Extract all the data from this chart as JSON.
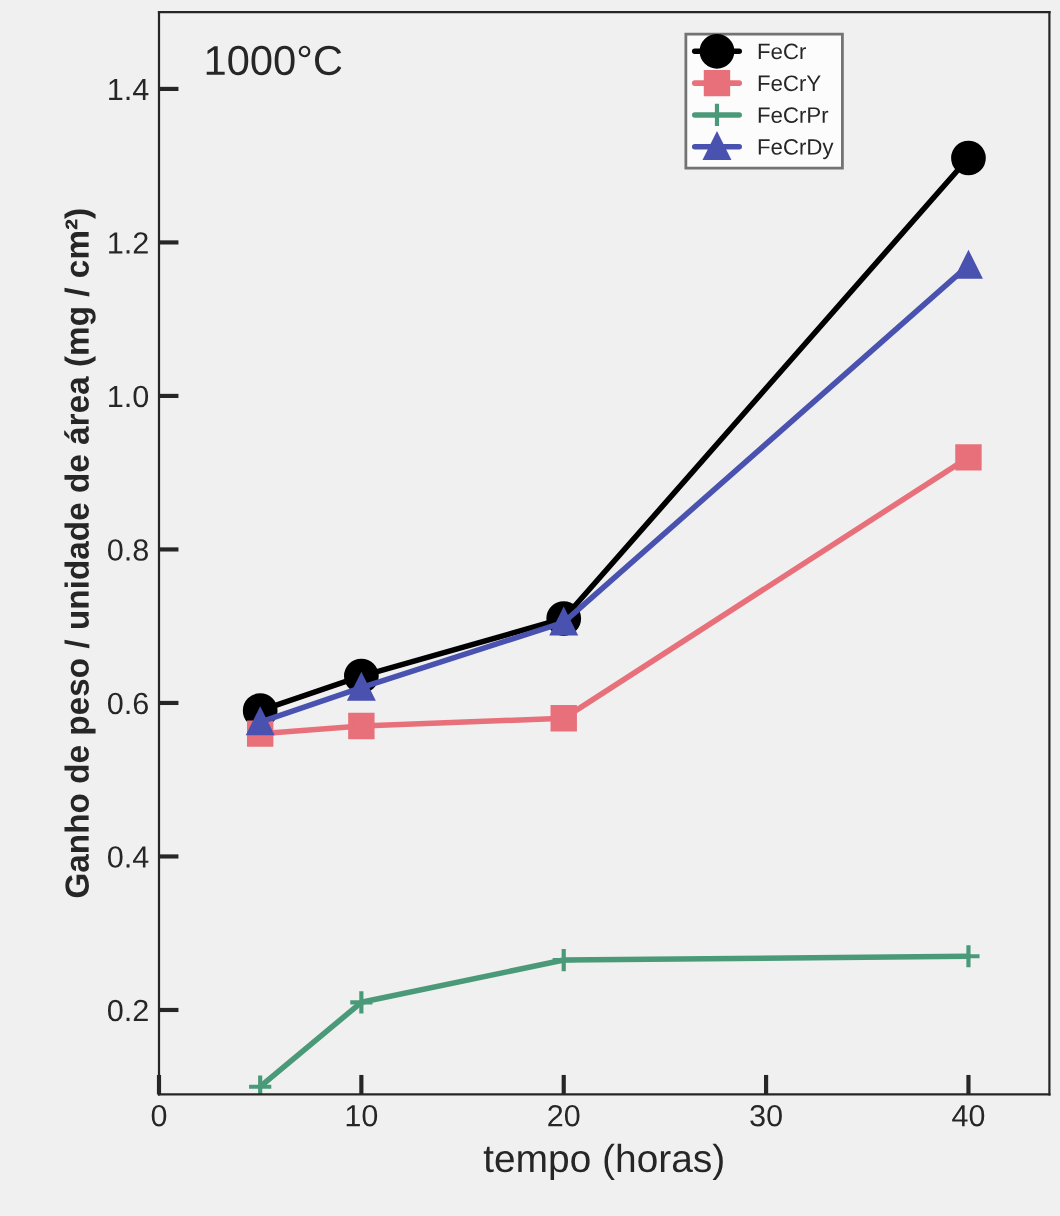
{
  "chart_data": {
    "type": "line",
    "xlabel": "tempo (horas)",
    "ylabel": "Ganho de peso / unidade de área (mg / cm²)",
    "annotations": [
      "1000°C"
    ],
    "x": [
      5,
      10,
      20,
      40
    ],
    "series": [
      {
        "name": "FeCr",
        "color": "#000000",
        "marker": "circle",
        "values": [
          0.59,
          0.635,
          0.71,
          1.31
        ]
      },
      {
        "name": "FeCrY",
        "color": "#e8707a",
        "marker": "square",
        "values": [
          0.56,
          0.57,
          0.58,
          0.92
        ]
      },
      {
        "name": "FeCrPr",
        "color": "#4a9a7a",
        "marker": "cross",
        "values": [
          0.1,
          0.21,
          0.265,
          0.27
        ]
      },
      {
        "name": "FeCrDy",
        "color": "#4a52b0",
        "marker": "triangle",
        "values": [
          0.575,
          0.62,
          0.705,
          1.17
        ]
      }
    ],
    "xlim": [
      0,
      44
    ],
    "ylim": [
      0.09,
      1.5
    ],
    "xticks": [
      0,
      10,
      20,
      30,
      40
    ],
    "yticks": [
      0.2,
      0.4,
      0.6,
      0.8,
      {
        "value": 1,
        "label": "1.0"
      },
      1.2,
      1.4
    ],
    "grid": false,
    "legend": "top right"
  }
}
